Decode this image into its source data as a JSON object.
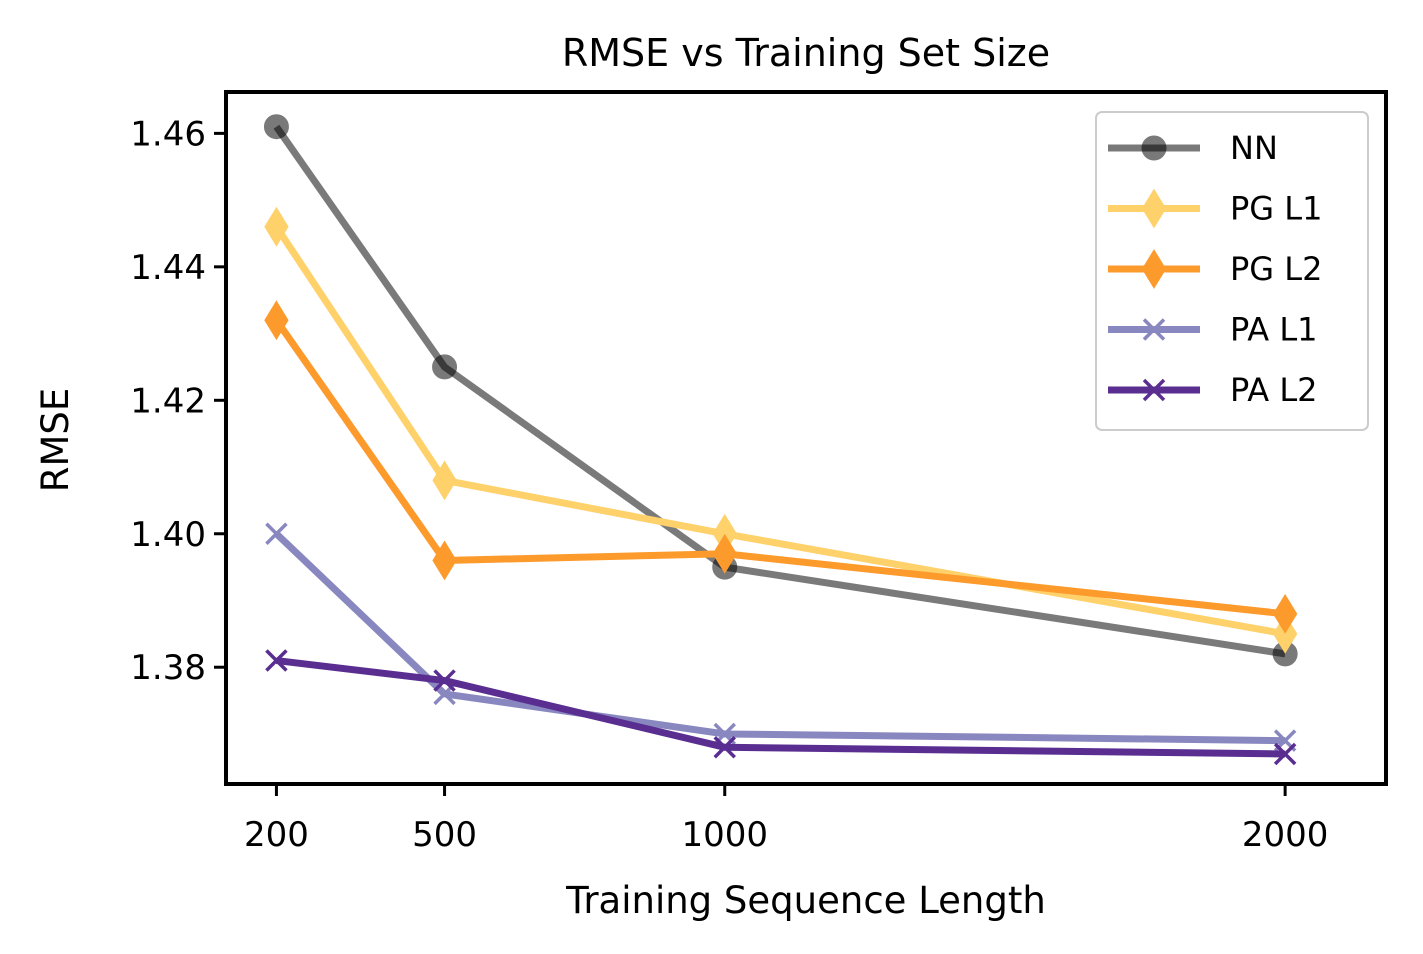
{
  "chart_data": {
    "type": "line",
    "title": "RMSE vs Training Set Size",
    "xlabel": "Training Sequence Length",
    "ylabel": "RMSE",
    "x": [
      200,
      500,
      1000,
      2000
    ],
    "x_tick_labels": [
      "200",
      "500",
      "1000",
      "2000"
    ],
    "y_ticks": [
      1.38,
      1.4,
      1.42,
      1.44,
      1.46
    ],
    "y_tick_labels": [
      "1.38",
      "1.40",
      "1.42",
      "1.44",
      "1.46"
    ],
    "xlim": [
      110,
      2180
    ],
    "ylim": [
      1.3625,
      1.4662
    ],
    "grid": false,
    "legend_position": "top-right",
    "series": [
      {
        "name": "NN",
        "values": [
          1.461,
          1.425,
          1.395,
          1.382
        ],
        "color": "#000000",
        "opacity": 0.52,
        "marker": "circle"
      },
      {
        "name": "PG L1",
        "values": [
          1.446,
          1.408,
          1.4,
          1.385
        ],
        "color": "#fed16a",
        "opacity": 1,
        "marker": "thin-diamond"
      },
      {
        "name": "PG L2",
        "values": [
          1.432,
          1.396,
          1.397,
          1.388
        ],
        "color": "#fd9a2c",
        "opacity": 1,
        "marker": "thin-diamond"
      },
      {
        "name": "PA L1",
        "values": [
          1.4,
          1.376,
          1.37,
          1.369
        ],
        "color": "#8987bf",
        "opacity": 1,
        "marker": "x"
      },
      {
        "name": "PA L2",
        "values": [
          1.381,
          1.378,
          1.368,
          1.367
        ],
        "color": "#5a2e91",
        "opacity": 1,
        "marker": "x"
      }
    ]
  }
}
